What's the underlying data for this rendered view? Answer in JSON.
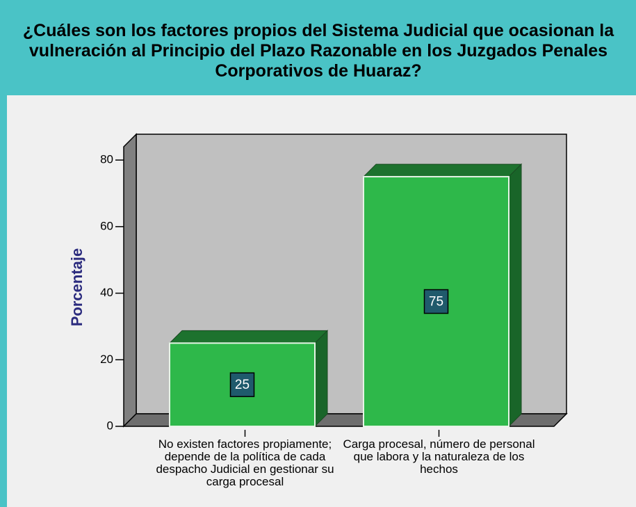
{
  "chart_data": {
    "type": "bar3d",
    "title": "¿Cuáles son los factores propios del Sistema Judicial que ocasionan la vulneración al Principio del Plazo Razonable en los Juzgados Penales Corporativos de Huaraz?",
    "y_label": "Porcentaje",
    "categories": [
      "No existen factores propiamente; depende de la política de cada despacho Judicial en gestionar su carga procesal",
      "Carga procesal, número de personal que labora y la naturaleza de los hechos"
    ],
    "values": [
      25,
      75
    ],
    "color": "#2eb84a",
    "ylim": [
      0,
      84
    ],
    "yticks": [
      0,
      20,
      40,
      60,
      80
    ]
  }
}
